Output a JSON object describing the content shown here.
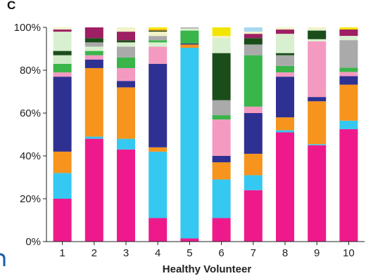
{
  "panel_label": "C",
  "chart_data": {
    "type": "bar",
    "stacked": true,
    "title": "",
    "xlabel": "Healthy Volunteer",
    "ylabel": "",
    "ylim": [
      0,
      100
    ],
    "yticks": [
      0,
      20,
      40,
      60,
      80,
      100
    ],
    "ytick_labels": [
      "0%",
      "20%",
      "40%",
      "60%",
      "80%",
      "100%"
    ],
    "categories": [
      "1",
      "2",
      "3",
      "4",
      "5",
      "6",
      "7",
      "8",
      "9",
      "10"
    ],
    "grid": false,
    "legend": "none",
    "bars": [
      [
        {
          "color": "#ee1a8c",
          "value": 20
        },
        {
          "color": "#35c8f0",
          "value": 12
        },
        {
          "color": "#f7941d",
          "value": 10
        },
        {
          "color": "#2e3192",
          "value": 35
        },
        {
          "color": "#f49ac1",
          "value": 2
        },
        {
          "color": "#39b54a",
          "value": 4
        },
        {
          "color": "#d0ebc7",
          "value": 4
        },
        {
          "color": "#1b4d1b",
          "value": 2
        },
        {
          "color": "#d9f0d0",
          "value": 9
        },
        {
          "color": "#9e1f63",
          "value": 1
        },
        {
          "color": "#f2f2c8",
          "value": 1
        }
      ],
      [
        {
          "color": "#ee1a8c",
          "value": 48
        },
        {
          "color": "#35c8f0",
          "value": 1
        },
        {
          "color": "#f7941d",
          "value": 32
        },
        {
          "color": "#2e3192",
          "value": 4
        },
        {
          "color": "#f49ac1",
          "value": 2
        },
        {
          "color": "#39b54a",
          "value": 2
        },
        {
          "color": "#d9f0d0",
          "value": 2
        },
        {
          "color": "#aaaaaa",
          "value": 2
        },
        {
          "color": "#1b4d1b",
          "value": 2
        },
        {
          "color": "#9e1f63",
          "value": 5
        }
      ],
      [
        {
          "color": "#ee1a8c",
          "value": 43
        },
        {
          "color": "#35c8f0",
          "value": 5
        },
        {
          "color": "#f7941d",
          "value": 24
        },
        {
          "color": "#2e3192",
          "value": 3
        },
        {
          "color": "#f49ac1",
          "value": 6
        },
        {
          "color": "#39b54a",
          "value": 5
        },
        {
          "color": "#aaaaaa",
          "value": 5
        },
        {
          "color": "#d9f0d0",
          "value": 2
        },
        {
          "color": "#1b4d1b",
          "value": 1
        },
        {
          "color": "#9e1f63",
          "value": 4
        },
        {
          "color": "#f2f2c8",
          "value": 2
        }
      ],
      [
        {
          "color": "#ee1a8c",
          "value": 11
        },
        {
          "color": "#35c8f0",
          "value": 31
        },
        {
          "color": "#f7941d",
          "value": 2
        },
        {
          "color": "#2e3192",
          "value": 39
        },
        {
          "color": "#f49ac1",
          "value": 8
        },
        {
          "color": "#d9f0d0",
          "value": 2
        },
        {
          "color": "#39b54a",
          "value": 1
        },
        {
          "color": "#aaaaaa",
          "value": 2
        },
        {
          "color": "#f2f2c8",
          "value": 2
        },
        {
          "color": "#1b4d1b",
          "value": 0.5
        },
        {
          "color": "#f7941d",
          "value": 0.5
        },
        {
          "color": "#f2e600",
          "value": 1
        }
      ],
      [
        {
          "color": "#ee1a8c",
          "value": 1.5
        },
        {
          "color": "#35c8f0",
          "value": 89
        },
        {
          "color": "#f7941d",
          "value": 1.5
        },
        {
          "color": "#2e3192",
          "value": 0.5
        },
        {
          "color": "#39b54a",
          "value": 6
        },
        {
          "color": "#d9f0d0",
          "value": 1
        },
        {
          "color": "#aaaaaa",
          "value": 0.5
        }
      ],
      [
        {
          "color": "#ee1a8c",
          "value": 11
        },
        {
          "color": "#35c8f0",
          "value": 18
        },
        {
          "color": "#f7941d",
          "value": 8
        },
        {
          "color": "#2e3192",
          "value": 3
        },
        {
          "color": "#f49ac1",
          "value": 17
        },
        {
          "color": "#39b54a",
          "value": 2
        },
        {
          "color": "#aaaaaa",
          "value": 7
        },
        {
          "color": "#1b4d1b",
          "value": 22
        },
        {
          "color": "#d9f0d0",
          "value": 7
        },
        {
          "color": "#f2f2c8",
          "value": 1
        },
        {
          "color": "#f2e600",
          "value": 4
        }
      ],
      [
        {
          "color": "#ee1a8c",
          "value": 24
        },
        {
          "color": "#35c8f0",
          "value": 7
        },
        {
          "color": "#f7941d",
          "value": 10
        },
        {
          "color": "#2e3192",
          "value": 19
        },
        {
          "color": "#f49ac1",
          "value": 3
        },
        {
          "color": "#39b54a",
          "value": 24
        },
        {
          "color": "#aaaaaa",
          "value": 5
        },
        {
          "color": "#1b4d1b",
          "value": 3
        },
        {
          "color": "#9e1f63",
          "value": 2
        },
        {
          "color": "#f2f2c8",
          "value": 1
        },
        {
          "color": "#a6d8f0",
          "value": 2
        }
      ],
      [
        {
          "color": "#ee1a8c",
          "value": 51
        },
        {
          "color": "#35c8f0",
          "value": 1
        },
        {
          "color": "#f7941d",
          "value": 6
        },
        {
          "color": "#2e3192",
          "value": 19
        },
        {
          "color": "#f49ac1",
          "value": 2
        },
        {
          "color": "#39b54a",
          "value": 3
        },
        {
          "color": "#aaaaaa",
          "value": 5
        },
        {
          "color": "#1b4d1b",
          "value": 1
        },
        {
          "color": "#d9f0d0",
          "value": 9
        },
        {
          "color": "#9e1f63",
          "value": 2
        },
        {
          "color": "#f2f2c8",
          "value": 1
        }
      ],
      [
        {
          "color": "#ee1a8c",
          "value": 45
        },
        {
          "color": "#35c8f0",
          "value": 0.5
        },
        {
          "color": "#f7941d",
          "value": 20
        },
        {
          "color": "#2e3192",
          "value": 2
        },
        {
          "color": "#f49ac1",
          "value": 26
        },
        {
          "color": "#d9f0d0",
          "value": 1
        },
        {
          "color": "#1b4d1b",
          "value": 4
        },
        {
          "color": "#d9f0d0",
          "value": 0.5
        },
        {
          "color": "#f2f2c8",
          "value": 1
        }
      ],
      [
        {
          "color": "#ee1a8c",
          "value": 53
        },
        {
          "color": "#35c8f0",
          "value": 4
        },
        {
          "color": "#f7941d",
          "value": 17
        },
        {
          "color": "#2e3192",
          "value": 4
        },
        {
          "color": "#f49ac1",
          "value": 2
        },
        {
          "color": "#39b54a",
          "value": 2
        },
        {
          "color": "#aaaaaa",
          "value": 13
        },
        {
          "color": "#d9f0d0",
          "value": 2
        },
        {
          "color": "#9e1f63",
          "value": 3
        },
        {
          "color": "#f2e600",
          "value": 1
        }
      ]
    ]
  },
  "decor": {
    "edge_fragment_color": "#1a5ea8"
  }
}
